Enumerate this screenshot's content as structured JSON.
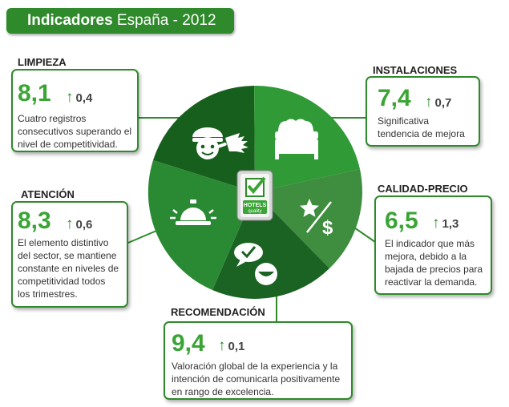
{
  "title": {
    "bold": "Indicadores",
    "rest": " España - 2012"
  },
  "center_logo": {
    "line1": "HOTELS",
    "line2": "quality"
  },
  "indicators": {
    "limpieza": {
      "label": "LIMPIEZA",
      "value": "8,1",
      "delta": "0,4",
      "icon": "housekeeper-icon",
      "lines": [
        "Cuatro registros",
        "consecutivos superando el",
        "nivel de competitividad."
      ]
    },
    "instalaciones": {
      "label": "INSTALACIONES",
      "value": "7,4",
      "delta": "0,7",
      "icon": "bed-icon",
      "lines": [
        "Significativa",
        "tendencia de mejora"
      ]
    },
    "atencion": {
      "label": "ATENCIÓN",
      "value": "8,3",
      "delta": "0,6",
      "icon": "service-bell-icon",
      "lines": [
        "El elemento distintivo",
        "del sector, se mantiene",
        "constante en niveles de",
        "competitividad todos",
        "los trimestres."
      ]
    },
    "calidad_precio": {
      "label": "CALIDAD-PRECIO",
      "value": "6,5",
      "delta": "1,3",
      "icon": "star-dollar-icon",
      "lines": [
        "El indicador que más",
        "mejora, debido a la",
        "bajada de precios para",
        "reactivar la demanda."
      ]
    },
    "recomendacion": {
      "label": "RECOMENDACIÓN",
      "value": "9,4",
      "delta": "0,1",
      "icon": "recommendation-icon",
      "lines": [
        "Valoración global de la experiencia y la",
        "intención de comunicarla positivamente",
        "en rango de excelencia."
      ]
    }
  },
  "colors": {
    "brand_green": "#2e8a2a",
    "value_green": "#3aa535",
    "dark_green": "#175f1d"
  }
}
